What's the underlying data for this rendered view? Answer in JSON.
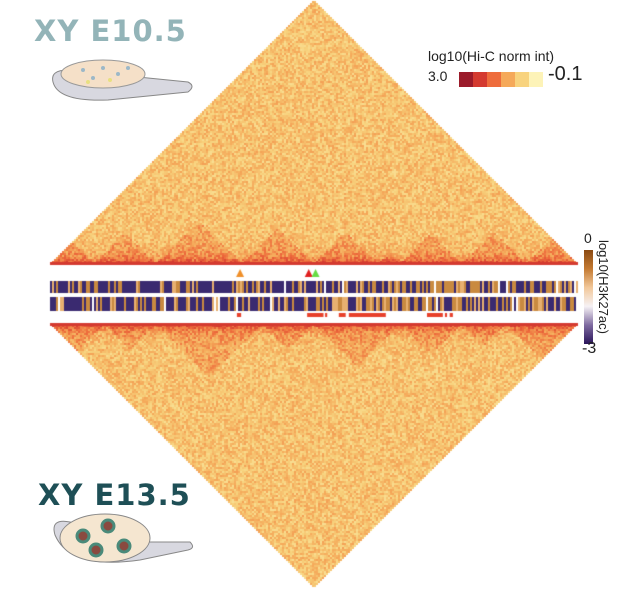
{
  "panels": {
    "top_label": "XY E10.5",
    "bottom_label": "XY E13.5"
  },
  "chart_data": {
    "type": "heatmap",
    "hic_legend": {
      "title": "log10(Hi-C norm int)",
      "min_label": "3.0",
      "max_label": "-0.1",
      "colors": [
        "#9b1b2a",
        "#d43a30",
        "#ee6c3c",
        "#f5a95a",
        "#f8d37e",
        "#fdf3b8"
      ]
    },
    "h3k27ac_legend": {
      "title": "log10(H3K27ac)",
      "max_label": "0",
      "min_label": "-3"
    },
    "top_tads": [
      0,
      0.08,
      0.2,
      0.36,
      0.5,
      0.62,
      0.66,
      0.78,
      0.9,
      1
    ],
    "bottom_tads": [
      0,
      0.1,
      0.2,
      0.4,
      0.5,
      0.66,
      0.78,
      0.86,
      1
    ],
    "arrowheads": [
      {
        "pos": 0.36,
        "color": "#f0902a"
      },
      {
        "pos": 0.49,
        "color": "#e02020"
      },
      {
        "pos": 0.503,
        "color": "#66dd44"
      }
    ],
    "red_regions": [
      [
        0.354,
        0.362
      ],
      [
        0.487,
        0.518
      ],
      [
        0.521,
        0.525
      ],
      [
        0.547,
        0.56
      ],
      [
        0.566,
        0.636
      ],
      [
        0.714,
        0.744
      ],
      [
        0.748,
        0.752
      ],
      [
        0.757,
        0.763
      ]
    ]
  }
}
